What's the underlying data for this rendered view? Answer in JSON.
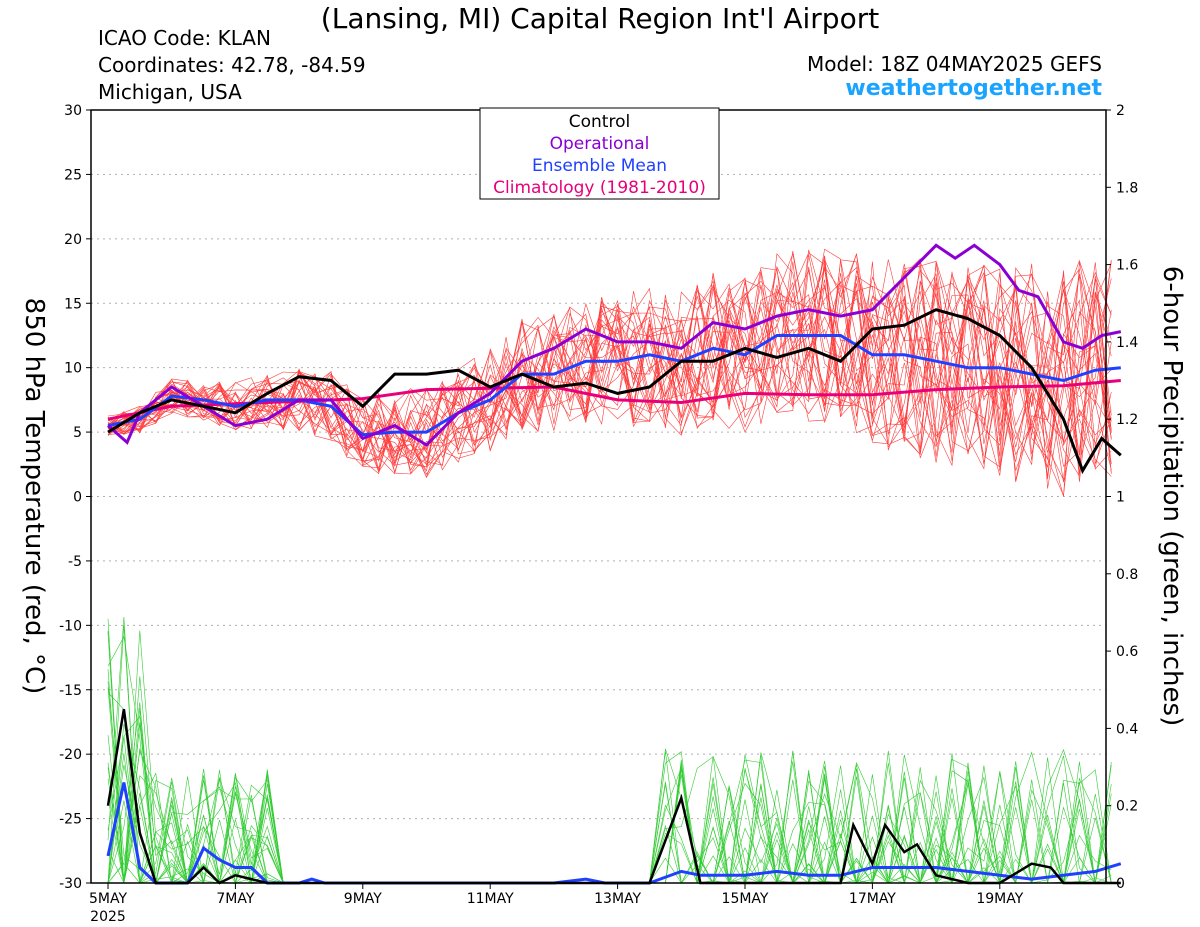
{
  "header": {
    "title": "(Lansing, MI) Capital Region Int'l Airport",
    "icao": "ICAO Code: KLAN",
    "coords": "Coordinates: 42.78, -84.59",
    "region": "Michigan, USA",
    "model": "Model: 18Z 04MAY2025 GEFS",
    "site": "weathertogether.net"
  },
  "legend": {
    "items": [
      {
        "label": "Control",
        "color": "#000000"
      },
      {
        "label": "Operational",
        "color": "#8a00d4"
      },
      {
        "label": "Ensemble Mean",
        "color": "#2040ff"
      },
      {
        "label": "Climatology (1981-2010)",
        "color": "#e8007a"
      }
    ]
  },
  "chart_data": {
    "type": "line",
    "xlabels": [
      "5MAY",
      "7MAY",
      "9MAY",
      "11MAY",
      "13MAY",
      "15MAY",
      "17MAY",
      "19MAY"
    ],
    "year_label": "2025",
    "x_range_days": [
      0,
      15.9
    ],
    "left_axis": {
      "label": "850 hPa Temperature (red, °C)",
      "ylim": [
        -30,
        30
      ],
      "ticks": [
        "30",
        "25",
        "20",
        "15",
        "10",
        "5",
        "0",
        "-5",
        "-10",
        "-15",
        "-20",
        "-25",
        "-30"
      ]
    },
    "right_axis": {
      "label": "6-hour Precipitation (green, inches)",
      "ylim": [
        0,
        2
      ],
      "ticks": [
        "2",
        "1.8",
        "1.6",
        "1.4",
        "1.2",
        "1",
        "0.8",
        "0.6",
        "0.4",
        "0.2",
        "0"
      ]
    },
    "colors": {
      "ensemble_temp": "#ff3b3b",
      "ensemble_precip": "#33cc33",
      "control": "#000000",
      "operational": "#8a00d4",
      "mean": "#2040ff",
      "climatology": "#e8007a",
      "grid": "#b0b0b0"
    },
    "temperature_series": {
      "control": [
        [
          0,
          5.0
        ],
        [
          0.5,
          6.5
        ],
        [
          1,
          7.5
        ],
        [
          1.5,
          7.0
        ],
        [
          2,
          6.5
        ],
        [
          2.5,
          8.0
        ],
        [
          3,
          9.3
        ],
        [
          3.5,
          9.0
        ],
        [
          4,
          7.0
        ],
        [
          4.5,
          9.5
        ],
        [
          5,
          9.5
        ],
        [
          5.5,
          9.8
        ],
        [
          6,
          8.5
        ],
        [
          6.5,
          9.5
        ],
        [
          7,
          8.5
        ],
        [
          7.5,
          8.8
        ],
        [
          8,
          8.0
        ],
        [
          8.5,
          8.5
        ],
        [
          9,
          10.5
        ],
        [
          9.5,
          10.5
        ],
        [
          10,
          11.5
        ],
        [
          10.5,
          10.8
        ],
        [
          11,
          11.5
        ],
        [
          11.5,
          10.5
        ],
        [
          12,
          13.0
        ],
        [
          12.5,
          13.3
        ],
        [
          13,
          14.5
        ],
        [
          13.5,
          13.8
        ],
        [
          14,
          12.5
        ],
        [
          14.5,
          10.0
        ],
        [
          15,
          6.0
        ],
        [
          15.3,
          2.0
        ],
        [
          15.6,
          4.5
        ],
        [
          15.9,
          3.2
        ]
      ],
      "operational": [
        [
          0,
          5.5
        ],
        [
          0.3,
          4.2
        ],
        [
          0.5,
          6.5
        ],
        [
          1,
          8.5
        ],
        [
          1.5,
          7.0
        ],
        [
          2,
          5.5
        ],
        [
          2.5,
          6.0
        ],
        [
          3,
          7.5
        ],
        [
          3.5,
          7.5
        ],
        [
          4,
          4.5
        ],
        [
          4.5,
          5.5
        ],
        [
          5,
          4.0
        ],
        [
          5.5,
          6.5
        ],
        [
          6,
          8.0
        ],
        [
          6.5,
          10.5
        ],
        [
          7,
          11.5
        ],
        [
          7.5,
          13.0
        ],
        [
          8,
          12.0
        ],
        [
          8.5,
          12.0
        ],
        [
          9,
          11.5
        ],
        [
          9.5,
          13.5
        ],
        [
          10,
          13.0
        ],
        [
          10.5,
          14.0
        ],
        [
          11,
          14.5
        ],
        [
          11.5,
          14.0
        ],
        [
          12,
          14.5
        ],
        [
          12.5,
          17.0
        ],
        [
          13,
          19.5
        ],
        [
          13.3,
          18.5
        ],
        [
          13.6,
          19.5
        ],
        [
          14,
          18.0
        ],
        [
          14.3,
          16.0
        ],
        [
          14.6,
          15.5
        ],
        [
          15,
          12.0
        ],
        [
          15.3,
          11.5
        ],
        [
          15.6,
          12.5
        ],
        [
          15.9,
          12.8
        ]
      ],
      "mean": [
        [
          0,
          5.5
        ],
        [
          0.5,
          6.0
        ],
        [
          1,
          7.8
        ],
        [
          1.5,
          7.5
        ],
        [
          2,
          7.0
        ],
        [
          2.5,
          7.5
        ],
        [
          3,
          7.5
        ],
        [
          3.5,
          7.0
        ],
        [
          4,
          4.8
        ],
        [
          4.5,
          5.0
        ],
        [
          5,
          5.0
        ],
        [
          5.5,
          6.5
        ],
        [
          6,
          7.5
        ],
        [
          6.5,
          9.5
        ],
        [
          7,
          9.5
        ],
        [
          7.5,
          10.5
        ],
        [
          8,
          10.5
        ],
        [
          8.5,
          11.0
        ],
        [
          9,
          10.5
        ],
        [
          9.5,
          11.5
        ],
        [
          10,
          11.0
        ],
        [
          10.5,
          12.5
        ],
        [
          11,
          12.5
        ],
        [
          11.5,
          12.5
        ],
        [
          12,
          11.0
        ],
        [
          12.5,
          11.0
        ],
        [
          13,
          10.5
        ],
        [
          13.5,
          10.0
        ],
        [
          14,
          10.0
        ],
        [
          14.5,
          9.5
        ],
        [
          15,
          9.0
        ],
        [
          15.5,
          9.8
        ],
        [
          15.9,
          10.0
        ]
      ],
      "climatology": [
        [
          0,
          6.0
        ],
        [
          1,
          7.0
        ],
        [
          2,
          7.2
        ],
        [
          3,
          7.4
        ],
        [
          4,
          7.6
        ],
        [
          5,
          8.3
        ],
        [
          6,
          8.4
        ],
        [
          7,
          8.5
        ],
        [
          8,
          7.5
        ],
        [
          9,
          7.3
        ],
        [
          10,
          8.0
        ],
        [
          11,
          7.9
        ],
        [
          12,
          7.9
        ],
        [
          13,
          8.3
        ],
        [
          14,
          8.5
        ],
        [
          15,
          8.6
        ],
        [
          15.9,
          9.0
        ]
      ]
    },
    "precip_series": {
      "control": [
        [
          0,
          0.2
        ],
        [
          0.25,
          0.45
        ],
        [
          0.5,
          0.13
        ],
        [
          0.75,
          0.0
        ],
        [
          1,
          0.0
        ],
        [
          1.25,
          0.0
        ],
        [
          1.5,
          0.04
        ],
        [
          1.75,
          0.0
        ],
        [
          2,
          0.02
        ],
        [
          2.25,
          0.01
        ],
        [
          2.5,
          0.0
        ],
        [
          8.5,
          0.0
        ],
        [
          9,
          0.22
        ],
        [
          9.3,
          0.0
        ],
        [
          11,
          0.0
        ],
        [
          11.5,
          0.0
        ],
        [
          11.7,
          0.15
        ],
        [
          12,
          0.05
        ],
        [
          12.2,
          0.15
        ],
        [
          12.5,
          0.08
        ],
        [
          12.7,
          0.1
        ],
        [
          13,
          0.02
        ],
        [
          13.5,
          0.0
        ],
        [
          14,
          0.0
        ],
        [
          14.5,
          0.05
        ],
        [
          14.8,
          0.04
        ],
        [
          15,
          0.0
        ],
        [
          15.9,
          0.0
        ]
      ],
      "mean": [
        [
          0,
          0.07
        ],
        [
          0.25,
          0.26
        ],
        [
          0.5,
          0.04
        ],
        [
          0.75,
          0.0
        ],
        [
          1,
          0.0
        ],
        [
          1.25,
          0.0
        ],
        [
          1.5,
          0.09
        ],
        [
          1.75,
          0.06
        ],
        [
          2,
          0.04
        ],
        [
          2.25,
          0.04
        ],
        [
          2.5,
          0.0
        ],
        [
          3,
          0.0
        ],
        [
          3.2,
          0.01
        ],
        [
          3.4,
          0.0
        ],
        [
          7,
          0.0
        ],
        [
          7.5,
          0.01
        ],
        [
          7.8,
          0.0
        ],
        [
          8.5,
          0.0
        ],
        [
          9,
          0.03
        ],
        [
          9.3,
          0.02
        ],
        [
          10,
          0.02
        ],
        [
          10.5,
          0.03
        ],
        [
          11,
          0.02
        ],
        [
          11.5,
          0.02
        ],
        [
          12,
          0.04
        ],
        [
          12.5,
          0.04
        ],
        [
          13,
          0.04
        ],
        [
          13.5,
          0.03
        ],
        [
          14,
          0.02
        ],
        [
          14.5,
          0.01
        ],
        [
          15,
          0.02
        ],
        [
          15.5,
          0.03
        ],
        [
          15.9,
          0.05
        ]
      ]
    }
  }
}
